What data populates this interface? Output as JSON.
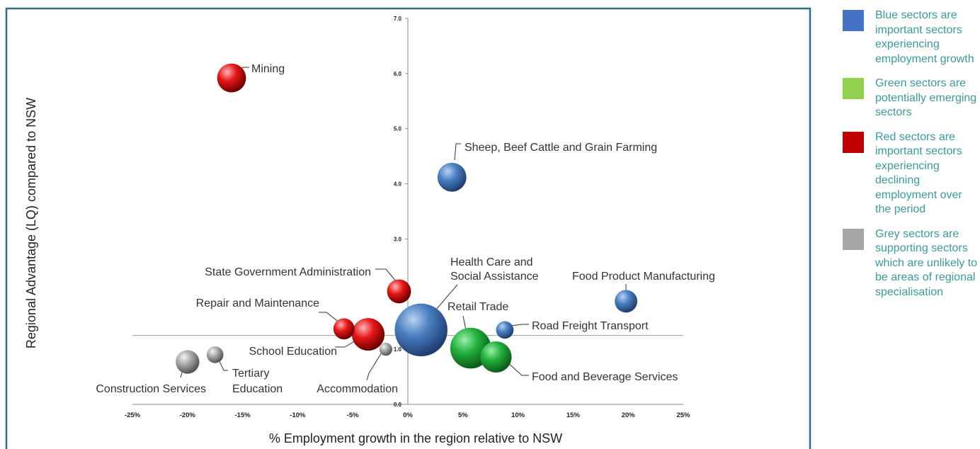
{
  "chart_data": {
    "type": "scatter",
    "subtype": "bubble",
    "xlabel": "% Employment growth in the region relative to NSW",
    "ylabel": "Regional Advantage (LQ) compared to NSW",
    "xlim": [
      -0.25,
      0.25
    ],
    "ylim": [
      0.0,
      7.0
    ],
    "x_ticks": [
      "-25%",
      "-20%",
      "-15%",
      "-10%",
      "-5%",
      "0%",
      "5%",
      "10%",
      "15%",
      "20%",
      "25%"
    ],
    "y_ticks": [
      "0.0",
      "1.0",
      "2.0",
      "3.0",
      "4.0",
      "5.0",
      "6.0",
      "7.0"
    ],
    "reference_line_y": 1.25,
    "colors": {
      "blue": "#4a7fc1",
      "green": "#2fb34a",
      "red": "#e01b1b",
      "grey": "#a5a5a5"
    },
    "points": [
      {
        "label": "Mining",
        "x": -0.16,
        "y": 5.92,
        "size": 0.9,
        "color": "red"
      },
      {
        "label": "Sheep, Beef Cattle and Grain Farming",
        "x": 0.04,
        "y": 4.12,
        "size": 0.9,
        "color": "blue"
      },
      {
        "label": "State Government Administration",
        "x": -0.008,
        "y": 2.05,
        "size": 0.62,
        "color": "red"
      },
      {
        "label": "Health Care and Social Assistance",
        "x": 0.012,
        "y": 1.35,
        "size": 3.0,
        "color": "blue"
      },
      {
        "label": "Food Product Manufacturing",
        "x": 0.198,
        "y": 1.87,
        "size": 0.55,
        "color": "blue"
      },
      {
        "label": "Repair and Maintenance",
        "x": -0.058,
        "y": 1.37,
        "size": 0.48,
        "color": "red"
      },
      {
        "label": "School Education",
        "x": -0.036,
        "y": 1.27,
        "size": 1.15,
        "color": "red"
      },
      {
        "label": "Retail Trade",
        "x": 0.057,
        "y": 1.02,
        "size": 1.8,
        "color": "green"
      },
      {
        "label": "Road Freight Transport",
        "x": 0.088,
        "y": 1.35,
        "size": 0.33,
        "color": "blue"
      },
      {
        "label": "Food and Beverage Services",
        "x": 0.08,
        "y": 0.86,
        "size": 1.05,
        "color": "green"
      },
      {
        "label": "Accommodation",
        "x": -0.02,
        "y": 1.0,
        "size": 0.18,
        "color": "grey"
      },
      {
        "label": "Tertiary Education",
        "x": -0.175,
        "y": 0.9,
        "size": 0.3,
        "color": "grey"
      },
      {
        "label": "Construction Services",
        "x": -0.2,
        "y": 0.77,
        "size": 0.6,
        "color": "grey"
      }
    ]
  },
  "legend": [
    {
      "text": "Blue sectors are important sectors experiencing employment growth",
      "color": "#4472c4"
    },
    {
      "text": "Green sectors are potentially emerging sectors",
      "color": "#92d050"
    },
    {
      "text": "Red sectors are important sectors experiencing declining employment over the period",
      "color": "#c00000"
    },
    {
      "text": "Grey sectors are supporting sectors which are unlikely to be areas of regional specialisation",
      "color": "#a5a5a5"
    }
  ]
}
